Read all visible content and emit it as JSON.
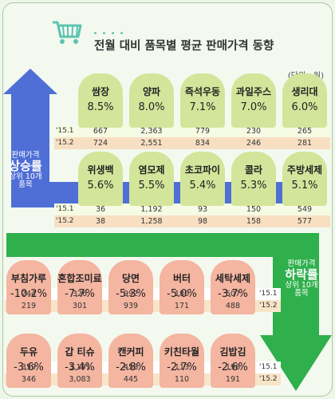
{
  "header": {
    "title": "전월 대비 품목별 평균 판매가격 동향",
    "unit": "(단위 : 원)"
  },
  "labels": {
    "up_small": "판매가격",
    "up_big": "상승률",
    "up_sub1": "상위 10개",
    "up_sub2": "품목",
    "down_small": "판매가격",
    "down_big": "하락률",
    "down_sub1": "상위 10개",
    "down_sub2": "품목",
    "period1": "'15.1",
    "period2": "'15.2"
  },
  "colors": {
    "up_arrow": "#4f6fd6",
    "down_arrow": "#2fb04c",
    "up_card": "#d3e59a",
    "down_card": "#f4b5a1"
  },
  "chart_data": {
    "type": "table",
    "title": "전월 대비 품목별 평균 판매가격 동향",
    "unit": "원",
    "periods": [
      "'15.1",
      "'15.2"
    ],
    "increase_top10": [
      {
        "item": "쌈장",
        "change": "8.5%",
        "p1": "667",
        "p2": "724"
      },
      {
        "item": "양파",
        "change": "8.0%",
        "p1": "2,363",
        "p2": "2,551"
      },
      {
        "item": "즉석우동",
        "change": "7.1%",
        "p1": "779",
        "p2": "834"
      },
      {
        "item": "과일주스",
        "change": "7.0%",
        "p1": "230",
        "p2": "246"
      },
      {
        "item": "생리대",
        "change": "6.0%",
        "p1": "265",
        "p2": "281"
      },
      {
        "item": "위생백",
        "change": "5.6%",
        "p1": "36",
        "p2": "38"
      },
      {
        "item": "염모제",
        "change": "5.5%",
        "p1": "1,192",
        "p2": "1,258"
      },
      {
        "item": "초코파이",
        "change": "5.4%",
        "p1": "93",
        "p2": "98"
      },
      {
        "item": "콜라",
        "change": "5.3%",
        "p1": "150",
        "p2": "158"
      },
      {
        "item": "주방세제",
        "change": "5.1%",
        "p1": "549",
        "p2": "577"
      }
    ],
    "decrease_top10": [
      {
        "item": "부침가루",
        "change": "-10.2%",
        "p1": "244",
        "p2": "219"
      },
      {
        "item": "혼합조미료",
        "change": "-7.7%",
        "p1": "326",
        "p2": "301"
      },
      {
        "item": "당면",
        "change": "-5.3%",
        "p1": "992",
        "p2": "939"
      },
      {
        "item": "버터",
        "change": "-5.0%",
        "p1": "180",
        "p2": "171"
      },
      {
        "item": "세탁세제",
        "change": "-3.7%",
        "p1": "507",
        "p2": "488"
      },
      {
        "item": "두유",
        "change": "-3.6%",
        "p1": "359",
        "p2": "346"
      },
      {
        "item": "갑 티슈",
        "change": "-3.4%",
        "p1": "3,191",
        "p2": "3,083"
      },
      {
        "item": "캔커피",
        "change": "-2.8%",
        "p1": "458",
        "p2": "445"
      },
      {
        "item": "키친타월",
        "change": "-2.7%",
        "p1": "113",
        "p2": "110"
      },
      {
        "item": "김밥김",
        "change": "-2.6%",
        "p1": "196",
        "p2": "191"
      }
    ]
  }
}
